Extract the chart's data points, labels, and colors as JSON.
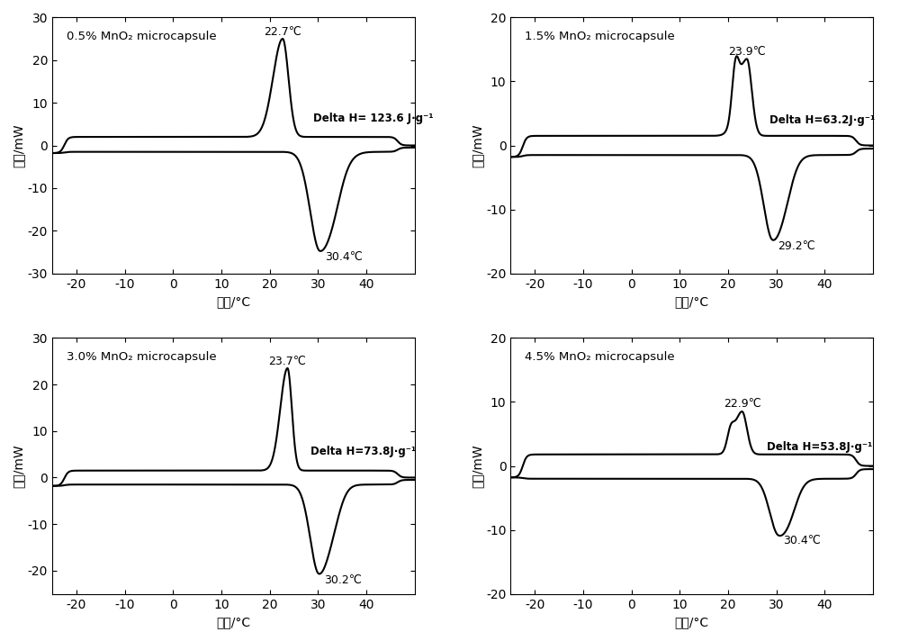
{
  "subplots": [
    {
      "title": "0.5% MnO₂ microcapsule",
      "peak_temp": 22.7,
      "trough_temp": 30.4,
      "peak_val": 25.0,
      "trough_val": -24.5,
      "delta_h": "Delta H= 123.6 J·g⁻¹",
      "delta_h_x": 29.0,
      "delta_h_y": 5.5,
      "ylim": [
        -30,
        30
      ],
      "yticks": [
        -30,
        -20,
        -10,
        0,
        10,
        20,
        30
      ],
      "bu": 2.0,
      "bl": -1.5,
      "has_shoulder": false,
      "shoulder_temp": 0,
      "shoulder_val": 0,
      "trough2_temp": 33.5,
      "trough2_val": -3.5,
      "peak_lw": 2.0,
      "peak_rw": 1.2,
      "trough_lw": 2.0,
      "trough_rw": 3.0
    },
    {
      "title": "1.5% MnO₂ microcapsule",
      "peak_temp": 23.9,
      "trough_temp": 29.2,
      "peak_val": 13.5,
      "trough_val": -14.5,
      "delta_h": "Delta H=63.2J·g⁻¹",
      "delta_h_x": 28.5,
      "delta_h_y": 3.5,
      "ylim": [
        -20,
        20
      ],
      "yticks": [
        -20,
        -10,
        0,
        10,
        20
      ],
      "bu": 1.5,
      "bl": -1.5,
      "has_shoulder": true,
      "shoulder_temp": 21.5,
      "shoulder_val": 8.5,
      "trough2_temp": 32.0,
      "trough2_val": -3.0,
      "peak_lw": 1.8,
      "peak_rw": 1.0,
      "trough_lw": 1.8,
      "trough_rw": 2.5
    },
    {
      "title": "3.0% MnO₂ microcapsule",
      "peak_temp": 23.7,
      "trough_temp": 30.2,
      "peak_val": 23.5,
      "trough_val": -20.5,
      "delta_h": "Delta H=73.8J·g⁻¹",
      "delta_h_x": 28.5,
      "delta_h_y": 5.0,
      "ylim": [
        -25,
        30
      ],
      "yticks": [
        -20,
        -10,
        0,
        10,
        20,
        30
      ],
      "bu": 1.5,
      "bl": -1.5,
      "has_shoulder": false,
      "shoulder_temp": 0,
      "shoulder_val": 0,
      "trough2_temp": 33.5,
      "trough2_val": -3.5,
      "peak_lw": 1.5,
      "peak_rw": 0.9,
      "trough_lw": 1.8,
      "trough_rw": 2.5
    },
    {
      "title": "4.5% MnO₂ microcapsule",
      "peak_temp": 22.9,
      "trough_temp": 30.4,
      "peak_val": 8.5,
      "trough_val": -10.5,
      "delta_h": "Delta H=53.8J·g⁻¹",
      "delta_h_x": 28.0,
      "delta_h_y": 2.5,
      "ylim": [
        -20,
        20
      ],
      "yticks": [
        -20,
        -10,
        0,
        10,
        20
      ],
      "bu": 1.8,
      "bl": -2.0,
      "has_shoulder": true,
      "shoulder_temp": 20.5,
      "shoulder_val": 4.5,
      "trough2_temp": 33.0,
      "trough2_val": -3.5,
      "peak_lw": 1.5,
      "peak_rw": 1.0,
      "trough_lw": 1.8,
      "trough_rw": 2.5
    }
  ],
  "xlim": [
    -25,
    50
  ],
  "xticks": [
    -20,
    -10,
    0,
    10,
    20,
    30,
    40
  ],
  "xlabel": "温度/°C",
  "ylabel": "热流/mW",
  "line_color": "#000000",
  "line_width": 1.5
}
